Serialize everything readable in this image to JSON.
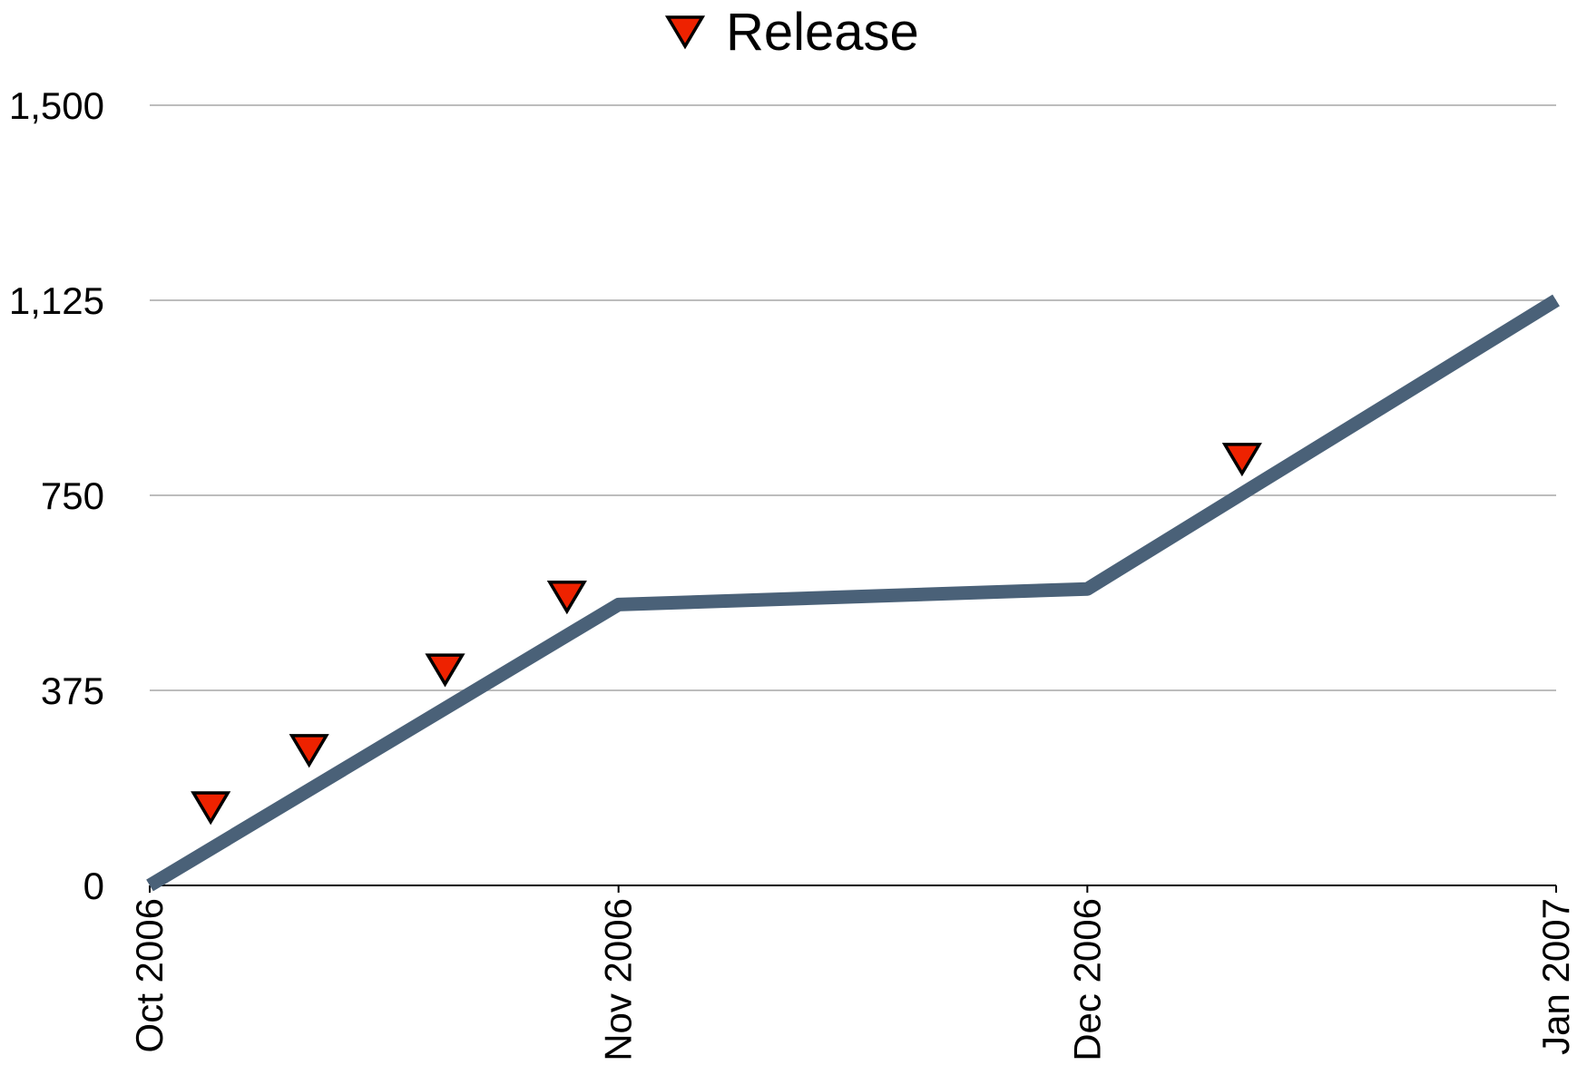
{
  "chart_data": {
    "type": "line",
    "title": "",
    "xlabel": "",
    "ylabel": "",
    "x_categories": [
      "Oct 2006",
      "Nov 2006",
      "Dec 2006",
      "Jan 2007"
    ],
    "y_ticks": [
      0,
      375,
      750,
      1125,
      1500
    ],
    "y_tick_labels": [
      "0",
      "375",
      "750",
      "1,125",
      "1,500"
    ],
    "ylim": [
      0,
      1500
    ],
    "grid": true,
    "legend_position": "top-center",
    "series": [
      {
        "type": "line",
        "x": [
          "Oct 2006",
          "Nov 2006",
          "Dec 2006",
          "Jan 2007"
        ],
        "values": [
          0,
          540,
          570,
          1125
        ],
        "color": "#4a6178"
      },
      {
        "name": "Release",
        "type": "scatter",
        "marker": "triangle-down",
        "color": "#ee2200",
        "x": [
          0.13,
          0.34,
          0.63,
          0.89,
          2.33
        ],
        "values": [
          150,
          260,
          415,
          555,
          820
        ]
      }
    ]
  }
}
